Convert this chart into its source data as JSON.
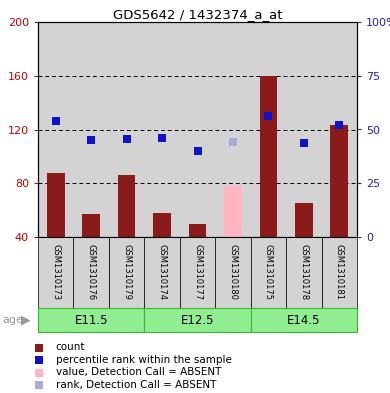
{
  "title": "GDS5642 / 1432374_a_at",
  "samples": [
    "GSM1310173",
    "GSM1310176",
    "GSM1310179",
    "GSM1310174",
    "GSM1310177",
    "GSM1310180",
    "GSM1310175",
    "GSM1310178",
    "GSM1310181"
  ],
  "count_values": [
    88,
    57,
    86,
    58,
    50,
    null,
    160,
    65,
    123
  ],
  "count_absent": [
    null,
    null,
    null,
    null,
    null,
    78,
    null,
    null,
    null
  ],
  "rank_values": [
    126,
    112,
    113,
    114,
    104,
    null,
    130,
    110,
    123
  ],
  "rank_absent": [
    null,
    null,
    null,
    null,
    null,
    111,
    null,
    null,
    null
  ],
  "age_groups": [
    {
      "label": "E11.5",
      "start": 0,
      "end": 3
    },
    {
      "label": "E12.5",
      "start": 3,
      "end": 6
    },
    {
      "label": "E14.5",
      "start": 6,
      "end": 9
    }
  ],
  "ylim_left": [
    40,
    200
  ],
  "ylim_right": [
    0,
    100
  ],
  "yticks_left": [
    40,
    80,
    120,
    160,
    200
  ],
  "yticks_right": [
    0,
    25,
    50,
    75,
    100
  ],
  "ytick_labels_right": [
    "0",
    "25",
    "50",
    "75",
    "100%"
  ],
  "bar_color": "#8B1A1A",
  "bar_absent_color": "#FFB6C1",
  "rank_color": "#1212CC",
  "rank_absent_color": "#AAAADD",
  "age_bg_color": "#90EE90",
  "age_border_color": "#33BB33",
  "sample_bg_color": "#D3D3D3",
  "grid_color": "black",
  "bar_width": 0.5,
  "left_tick_color": "#CC0000",
  "right_tick_color": "#2222BB",
  "age_label_color": "#999999",
  "legend": [
    {
      "label": "count",
      "color": "#8B1A1A"
    },
    {
      "label": "percentile rank within the sample",
      "color": "#1212CC"
    },
    {
      "label": "value, Detection Call = ABSENT",
      "color": "#FFB6C1"
    },
    {
      "label": "rank, Detection Call = ABSENT",
      "color": "#AAAADD"
    }
  ]
}
